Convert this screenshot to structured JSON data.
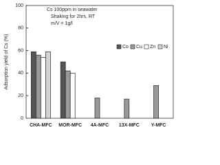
{
  "chart_data": {
    "type": "bar",
    "y_label": "Adsorption yield of Cs (%)",
    "annotations": [
      "Cs 100ppm in seawater",
      "Shaking for 2hrs, RT",
      "m/V = 1g/l"
    ],
    "categories": [
      "CHA-MFC",
      "MOR-MFC",
      "4A-MFC",
      "13X-MFC",
      "Y-MFC"
    ],
    "series": [
      {
        "name": "Co",
        "color": "#555555",
        "values": [
          59,
          50,
          null,
          null,
          null
        ]
      },
      {
        "name": "Cu",
        "color": "#9a9a9a",
        "values": [
          56,
          42,
          18,
          17,
          29
        ]
      },
      {
        "name": "Zn",
        "color": "#ffffff",
        "values": [
          54,
          40,
          null,
          null,
          null
        ]
      },
      {
        "name": "Ni",
        "color": "#d4d4d4",
        "values": [
          59,
          null,
          null,
          null,
          null
        ]
      }
    ],
    "ylim": [
      0,
      100
    ],
    "yticks": [
      0,
      20,
      40,
      60,
      80,
      100
    ],
    "grid": false,
    "legend": "center right"
  }
}
